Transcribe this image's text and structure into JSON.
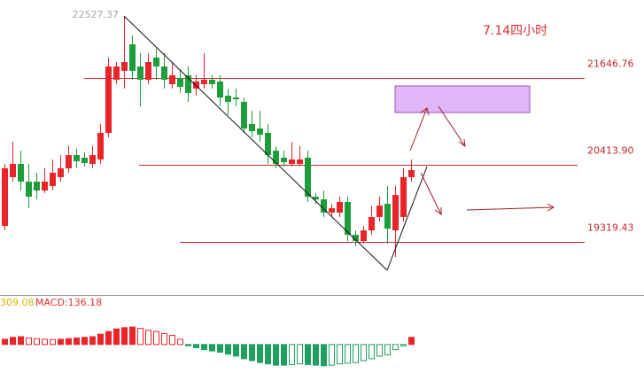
{
  "chart_data": {
    "type": "candlestick",
    "title": "7.14四小时",
    "high_label": 22527.37,
    "ylim": [
      18565,
      22754
    ],
    "up_color": "#e8262a",
    "down_color": "#1e9e3a",
    "open": [
      19546,
      20238,
      20427,
      20175,
      20175,
      20049,
      20112,
      20238,
      20364,
      20552,
      20515,
      20427,
      20490,
      20867,
      21622,
      21748,
      22125,
      21810,
      21622,
      21936,
      21810,
      21559,
      21647,
      21685,
      21496,
      21559,
      21622,
      21597,
      21395,
      21370,
      21307,
      20993,
      20930,
      20867,
      20615,
      20515,
      20427,
      20427,
      20515,
      19961,
      19923,
      19735,
      19735,
      19886,
      19420,
      19332,
      19483,
      19672,
      19861,
      19483,
      19672,
      20238
    ],
    "high": [
      20427,
      20741,
      20615,
      20427,
      20301,
      20364,
      20490,
      20552,
      20678,
      20641,
      20590,
      20678,
      20993,
      21936,
      21873,
      22527.37,
      22251,
      21999,
      21999,
      22062,
      21999,
      21873,
      21773,
      21810,
      21685,
      21999,
      21685,
      21685,
      21496,
      21496,
      21370,
      21181,
      21181,
      20993,
      20678,
      20615,
      20741,
      20678,
      20615,
      20012,
      20049,
      19861,
      19961,
      19961,
      19483,
      19546,
      19835,
      19961,
      20112,
      20112,
      20364,
      20490
    ],
    "low": [
      19483,
      20175,
      20049,
      19798,
      19923,
      20012,
      20049,
      20175,
      20301,
      20364,
      20389,
      20364,
      20427,
      20804,
      21559,
      21496,
      21622,
      21244,
      21559,
      21622,
      21496,
      21496,
      21433,
      21307,
      21395,
      21496,
      21496,
      21244,
      21119,
      21244,
      20867,
      20804,
      20741,
      20427,
      20364,
      20389,
      20389,
      20389,
      19886,
      19861,
      19672,
      19672,
      19672,
      19332,
      19257,
      19294,
      19420,
      19609,
      19294,
      19106,
      19609,
      20175
    ],
    "close": [
      20364,
      20427,
      20175,
      19961,
      20049,
      20175,
      20301,
      20364,
      20552,
      20464,
      20439,
      20552,
      20867,
      21810,
      21810,
      21873,
      21748,
      21622,
      21873,
      21810,
      21622,
      21685,
      21521,
      21433,
      21597,
      21622,
      21559,
      21370,
      21307,
      21345,
      20930,
      20892,
      20842,
      20552,
      20427,
      20452,
      20490,
      20490,
      19961,
      19923,
      19735,
      19798,
      19886,
      19420,
      19332,
      19483,
      19672,
      19835,
      19508,
      19986,
      20238,
      20339
    ],
    "levels": [
      21646.76,
      {
        "value": 20413.9,
        "label": "20413.90"
      },
      19319.43
    ],
    "level_color": "#c0282c",
    "macd": {
      "label": "MACD:136.18",
      "prefix": "309.08",
      "ylim": [
        -200,
        300
      ],
      "values": [
        40,
        55,
        60,
        50,
        45,
        40,
        38,
        40,
        45,
        50,
        55,
        60,
        80,
        100,
        120,
        130,
        135,
        125,
        110,
        100,
        85,
        70,
        40,
        -10,
        -25,
        -40,
        -50,
        -60,
        -75,
        -90,
        -110,
        -125,
        -140,
        -150,
        -160,
        -160,
        -155,
        -150,
        -155,
        -160,
        -165,
        -160,
        -150,
        -145,
        -140,
        -125,
        -110,
        -90,
        -80,
        -40,
        -10,
        55
      ]
    }
  }
}
